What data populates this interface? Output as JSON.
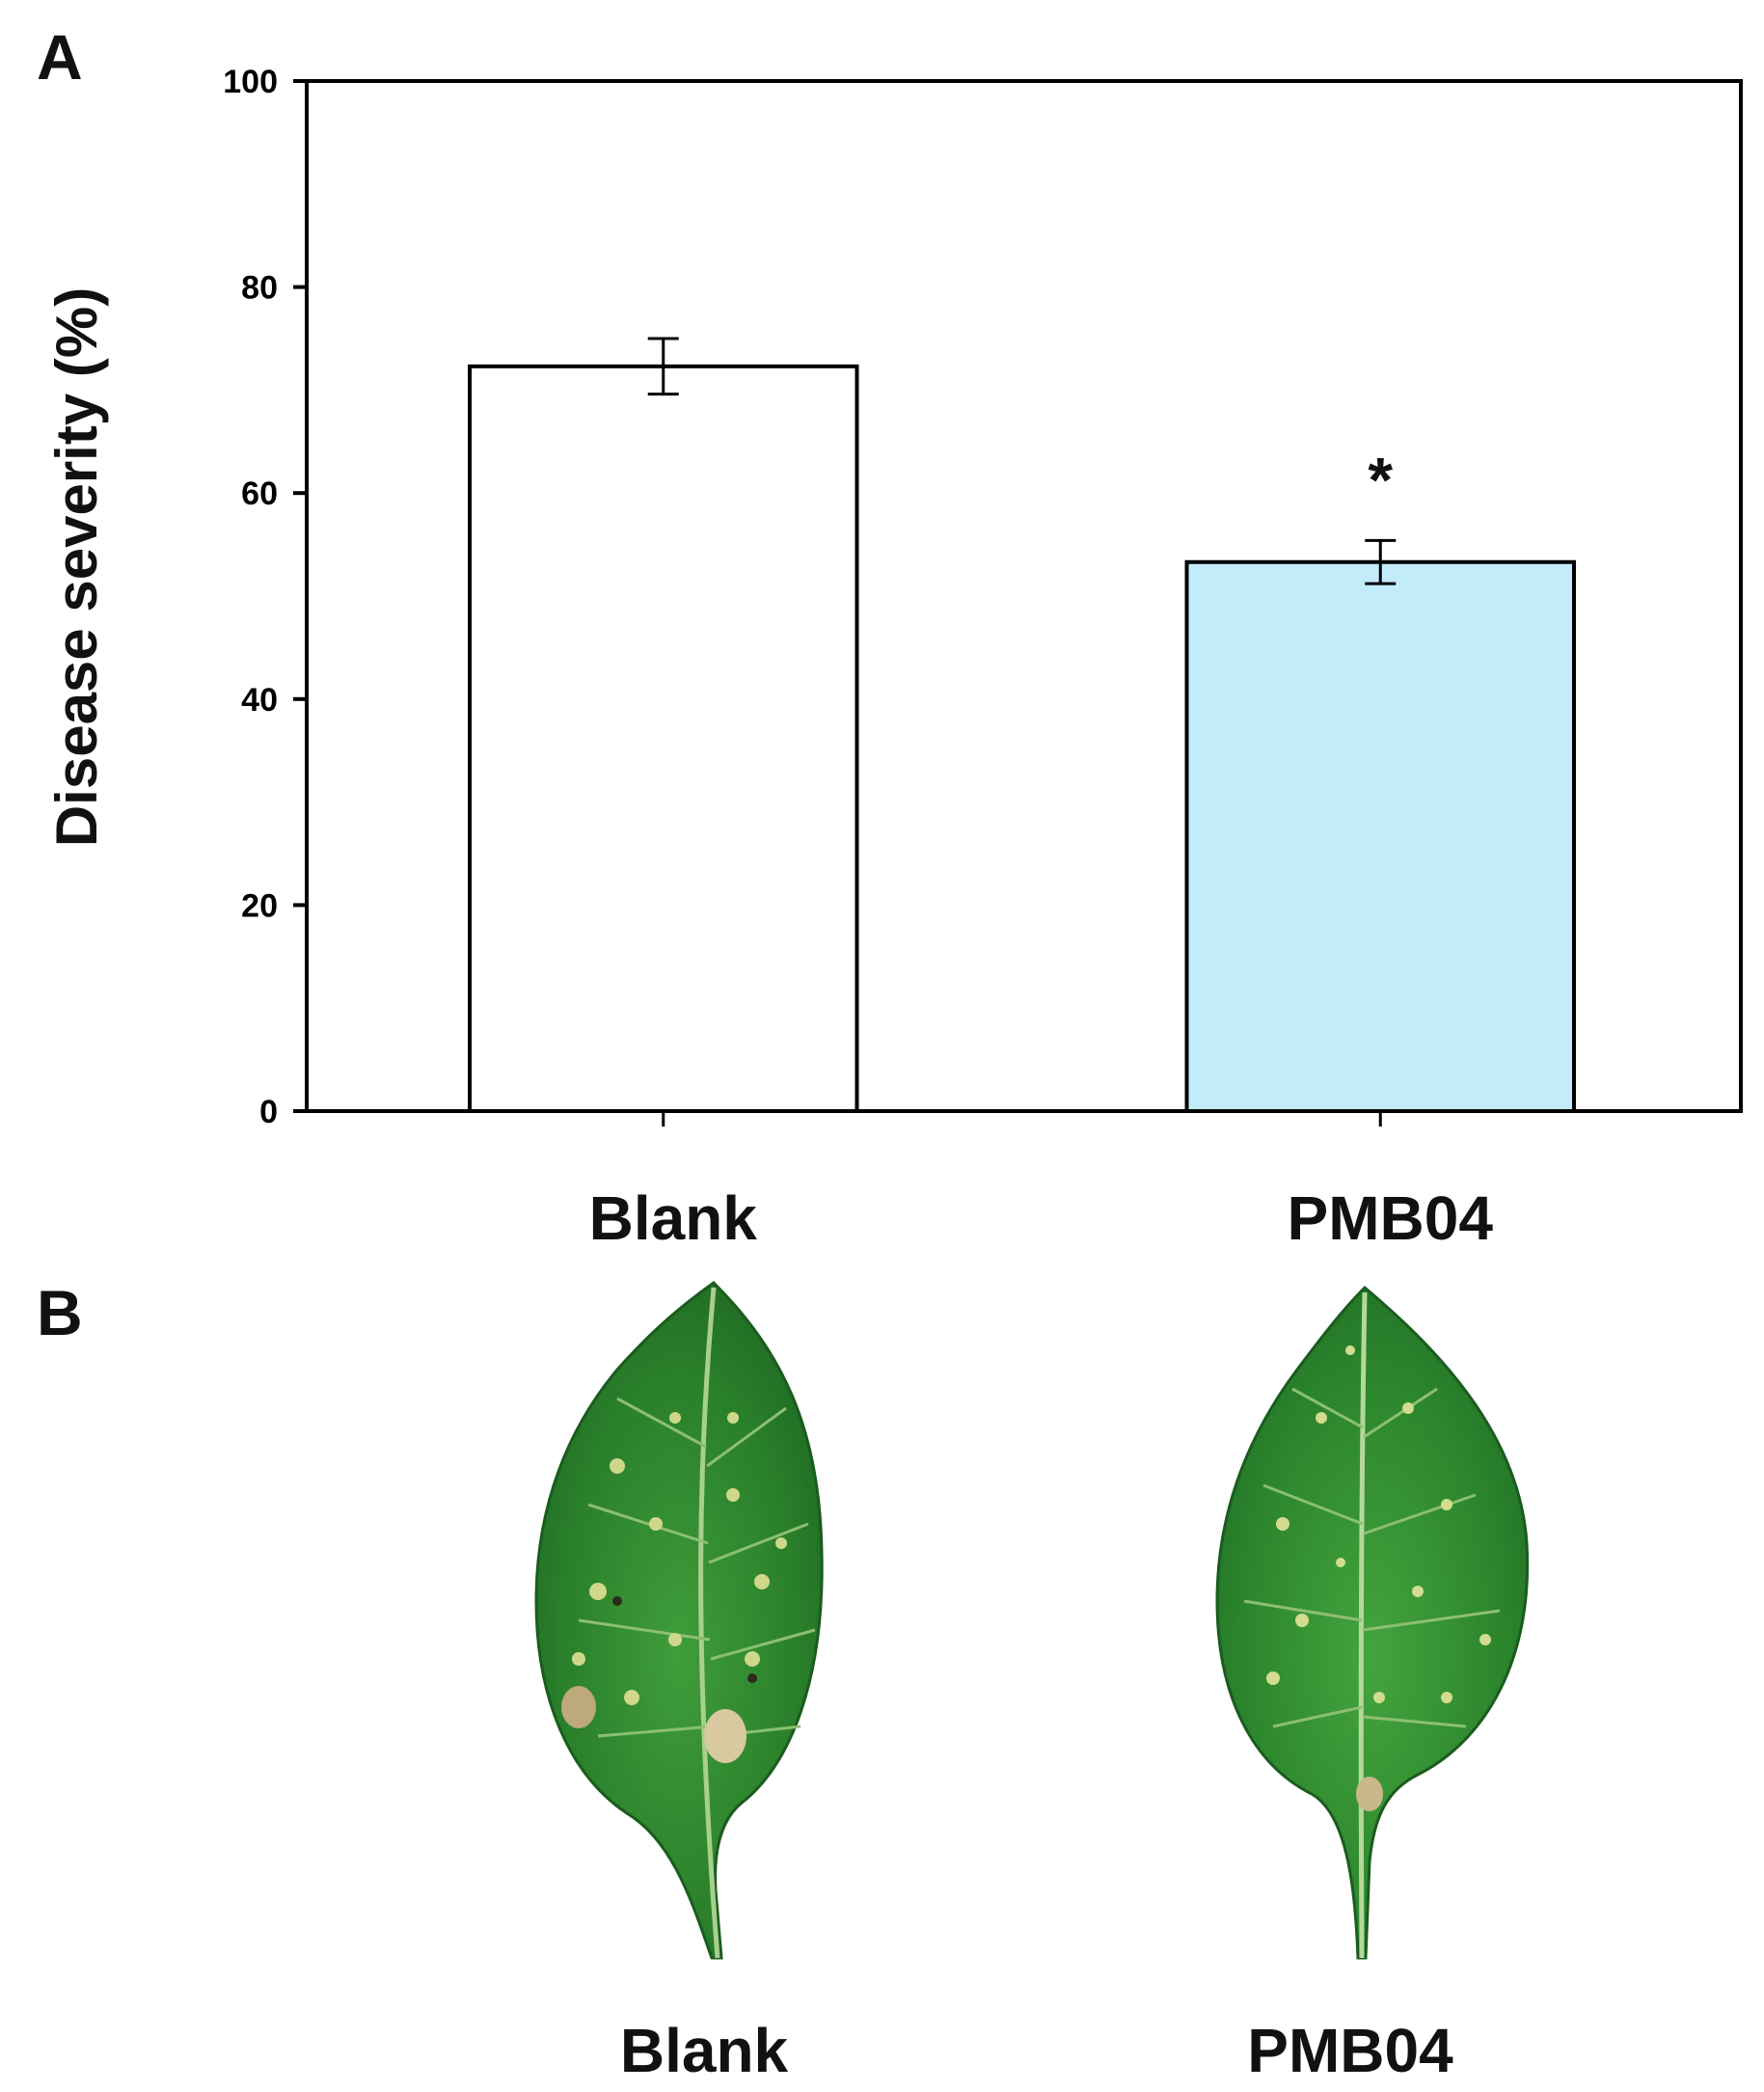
{
  "panels": {
    "a": "A",
    "b": "B"
  },
  "chart_data": {
    "type": "bar",
    "title": "",
    "xlabel": "",
    "ylabel": "Disease severity (%)",
    "ylim": [
      0,
      100
    ],
    "yticks": [
      0,
      20,
      40,
      60,
      80,
      100
    ],
    "grid": false,
    "categories": [
      "Blank",
      "PMB04"
    ],
    "values": [
      72.3,
      53.3
    ],
    "errors": [
      2.7,
      2.1
    ],
    "significance": [
      "",
      "*"
    ],
    "colors": [
      "#ffffff",
      "#c3ecfb"
    ]
  },
  "photos": {
    "labels": [
      "Blank",
      "PMB04"
    ],
    "leaf_color": "#2f8a2f"
  }
}
